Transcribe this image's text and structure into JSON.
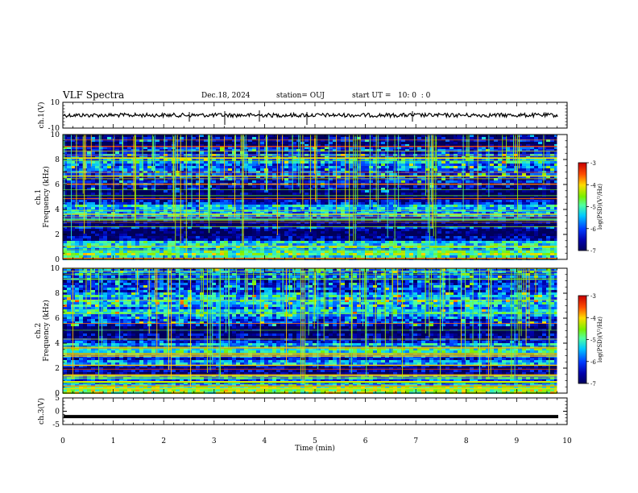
{
  "header": {
    "title": "VLF Spectra",
    "date": "Dec.18, 2024",
    "station": "station= OUJ",
    "start": "start UT =   10: 0  : 0"
  },
  "chart_data": [
    {
      "type": "line",
      "panel": "ch1_waveform",
      "ylabel": "ch.1(V)",
      "ylim": [
        -10,
        10
      ],
      "yticks": [
        "10",
        "-10"
      ],
      "series": [
        {
          "values": [
            0
          ]
        }
      ]
    },
    {
      "type": "heatmap",
      "panel": "ch1_spectrogram",
      "ylabel": "ch.1\nFrequency (kHz)",
      "ylim": [
        0,
        10
      ],
      "xlim": [
        0,
        9.8
      ],
      "yticks": [
        "0",
        "2",
        "4",
        "6",
        "8",
        "10"
      ],
      "colorbar": {
        "label": "log(PSD)(V²/Hz)",
        "range": [
          -7,
          -3
        ],
        "ticks": [
          "-3",
          "-4",
          "-5",
          "-6",
          "-7"
        ]
      }
    },
    {
      "type": "heatmap",
      "panel": "ch2_spectrogram",
      "ylabel": "ch.2\nFrequency (kHz)",
      "ylim": [
        0,
        10
      ],
      "xlim": [
        0,
        9.8
      ],
      "yticks": [
        "0",
        "2",
        "4",
        "6",
        "8",
        "10"
      ],
      "colorbar": {
        "label": "log(PSD)(V²/Hz)",
        "range": [
          -7,
          -3
        ],
        "ticks": [
          "-3",
          "-4",
          "-5",
          "-6",
          "-7"
        ]
      }
    },
    {
      "type": "line",
      "panel": "ch3_waveform",
      "ylabel": "ch.3(V)",
      "ylim": [
        -5,
        5
      ],
      "yticks": [
        "5",
        "0",
        "-5"
      ],
      "series": [
        {
          "values": [
            -2
          ]
        }
      ]
    }
  ],
  "xaxis": {
    "label": "Time (min)",
    "range": [
      0,
      10
    ],
    "ticks": [
      "0",
      "1",
      "2",
      "3",
      "4",
      "5",
      "6",
      "7",
      "8",
      "9",
      "10"
    ]
  }
}
